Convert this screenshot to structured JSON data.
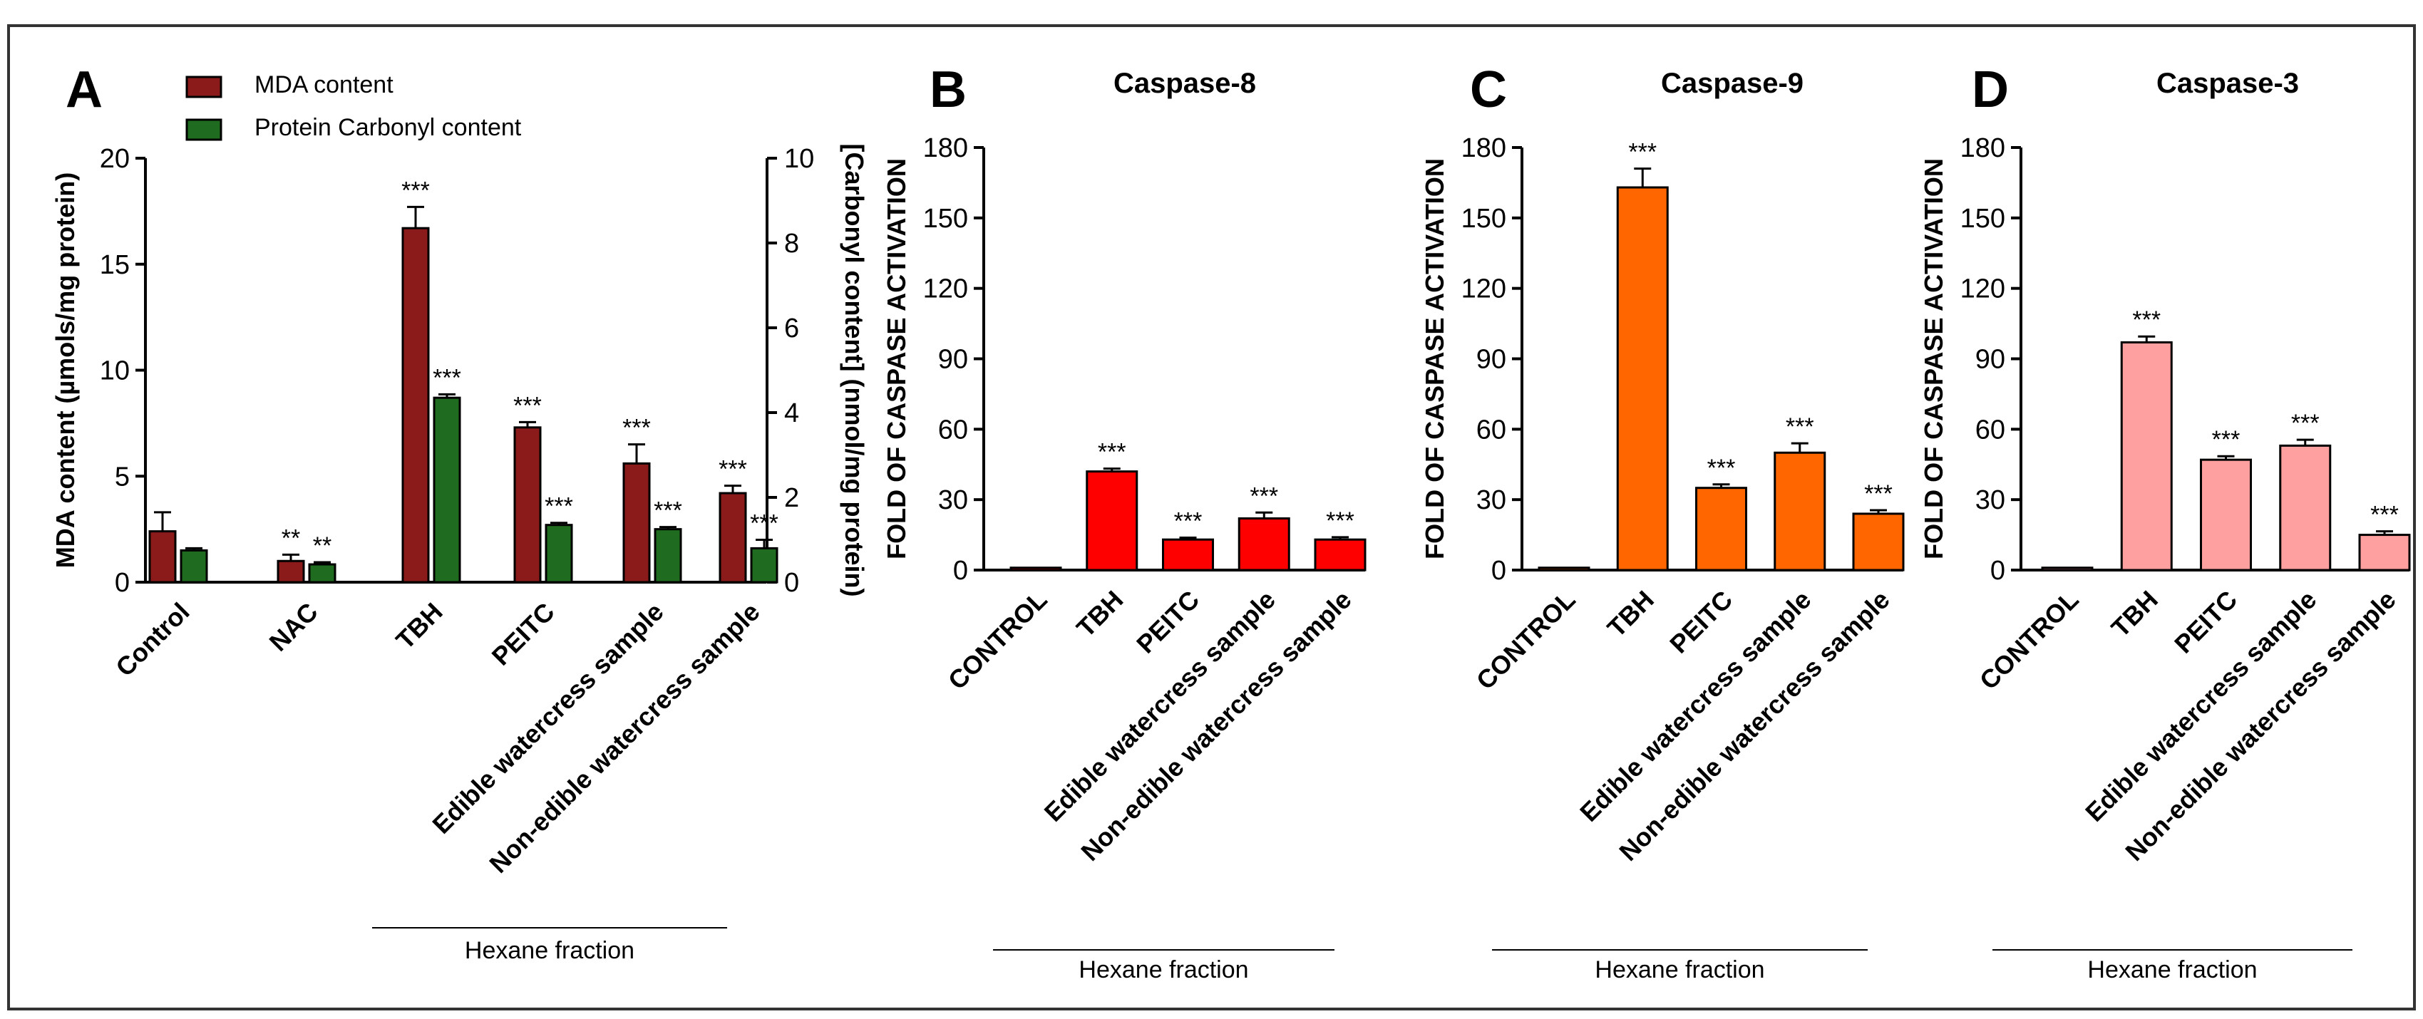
{
  "chart_data": [
    {
      "panel": "A",
      "type": "bar",
      "title": "",
      "categories": [
        "Control",
        "NAC",
        "TBH",
        "PEITC",
        "Edible watercress sample",
        "Non-edible watercress sample"
      ],
      "group_label": "Hexane fraction",
      "ylabel": "MDA content  (µmols/mg protein)",
      "y2label": "[Carbonyl content] (nmol/mg protein)",
      "ylim": [
        0,
        20
      ],
      "yticks": [
        0,
        5,
        10,
        15,
        20
      ],
      "y2lim": [
        0,
        10
      ],
      "y2ticks": [
        0,
        2,
        4,
        6,
        8,
        10
      ],
      "series": [
        {
          "name": "MDA content",
          "color": "#8B1A1A",
          "axis": "left",
          "values": [
            2.4,
            1.0,
            16.7,
            7.3,
            5.6,
            4.2
          ],
          "errors": [
            0.9,
            0.3,
            1.0,
            0.25,
            0.9,
            0.35
          ],
          "significance": [
            "",
            "**",
            "***",
            "***",
            "***",
            "***"
          ]
        },
        {
          "name": "Protein Carbonyl content",
          "color": "#1F6B1F",
          "axis": "right",
          "values": [
            0.75,
            0.42,
            4.35,
            1.35,
            1.25,
            0.8
          ],
          "errors": [
            0.05,
            0.05,
            0.08,
            0.05,
            0.05,
            0.2
          ],
          "significance": [
            "",
            "**",
            "***",
            "***",
            "***",
            "***"
          ]
        }
      ]
    },
    {
      "panel": "B",
      "type": "bar",
      "title": "Caspase-8",
      "categories": [
        "CONTROL",
        "TBH",
        "PEITC",
        "Edible watercress sample",
        "Non-edible watercress sample"
      ],
      "group_label": "Hexane fraction",
      "ylabel": "FOLD OF CASPASE ACTIVATION",
      "ylim": [
        0,
        180
      ],
      "yticks": [
        0,
        30,
        60,
        90,
        120,
        150,
        180
      ],
      "series": [
        {
          "name": "Caspase-8",
          "color": "#FF0000",
          "values": [
            1,
            42,
            13,
            22,
            13
          ],
          "errors": [
            0,
            1.2,
            0.8,
            2.5,
            1
          ],
          "significance": [
            "",
            "***",
            "***",
            "***",
            "***"
          ]
        }
      ]
    },
    {
      "panel": "C",
      "type": "bar",
      "title": "Caspase-9",
      "categories": [
        "CONTROL",
        "TBH",
        "PEITC",
        "Edible watercress sample",
        "Non-edible watercress sample"
      ],
      "group_label": "Hexane fraction",
      "ylabel": "FOLD OF CASPASE ACTIVATION",
      "ylim": [
        0,
        180
      ],
      "yticks": [
        0,
        30,
        60,
        90,
        120,
        150,
        180
      ],
      "series": [
        {
          "name": "Caspase-9",
          "color": "#FF6600",
          "values": [
            1,
            163,
            35,
            50,
            24
          ],
          "errors": [
            0,
            8,
            1.5,
            4,
            1.5
          ],
          "significance": [
            "",
            "***",
            "***",
            "***",
            "***"
          ]
        }
      ]
    },
    {
      "panel": "D",
      "type": "bar",
      "title": "Caspase-3",
      "categories": [
        "CONTROL",
        "TBH",
        "PEITC",
        "Edible watercress sample",
        "Non-edible watercress sample"
      ],
      "group_label": "Hexane fraction",
      "ylabel": "FOLD OF CASPASE ACTIVATION",
      "ylim": [
        0,
        180
      ],
      "yticks": [
        0,
        30,
        60,
        90,
        120,
        150,
        180
      ],
      "series": [
        {
          "name": "Caspase-3",
          "color": "#FFA0A0",
          "values": [
            1,
            97,
            47,
            53,
            15
          ],
          "errors": [
            0,
            2.5,
            1.5,
            2.5,
            1.5
          ],
          "significance": [
            "",
            "***",
            "***",
            "***",
            "***"
          ]
        }
      ]
    }
  ]
}
